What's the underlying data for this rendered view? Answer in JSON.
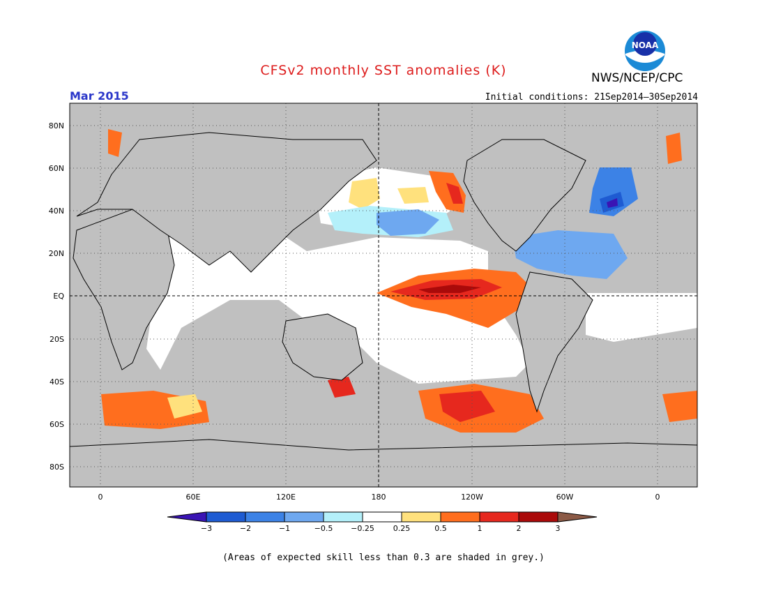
{
  "header": {
    "title": "CFSv2 monthly SST anomalies (K)",
    "credit": "NWS/NCEP/CPC",
    "logo_text": "NOAA",
    "valid_month": "Mar 2015",
    "initial_conditions": "Initial conditions: 21Sep2014–30Sep2014"
  },
  "map": {
    "lat_labels": [
      "80N",
      "60N",
      "40N",
      "20N",
      "EQ",
      "20S",
      "40S",
      "60S",
      "80S"
    ],
    "lon_labels": [
      "0",
      "60E",
      "120E",
      "180",
      "120W",
      "60W",
      "0"
    ],
    "land_color": "#c0c0c0",
    "ocean_color": "#ffffff"
  },
  "colorbar": {
    "labels": [
      "−3",
      "−2",
      "−1",
      "−0.5",
      "−0.25",
      "0.25",
      "0.5",
      "1",
      "2",
      "3"
    ],
    "colors": [
      "#3a14b4",
      "#1e5bd2",
      "#3c82e6",
      "#6ea8f0",
      "#b4f0fa",
      "#ffffff",
      "#ffe17d",
      "#ff6e1e",
      "#e6281e",
      "#aa0a0a",
      "#8c5a46"
    ]
  },
  "footnote": "(Areas of expected skill less than 0.3 are shaded in grey.)"
}
